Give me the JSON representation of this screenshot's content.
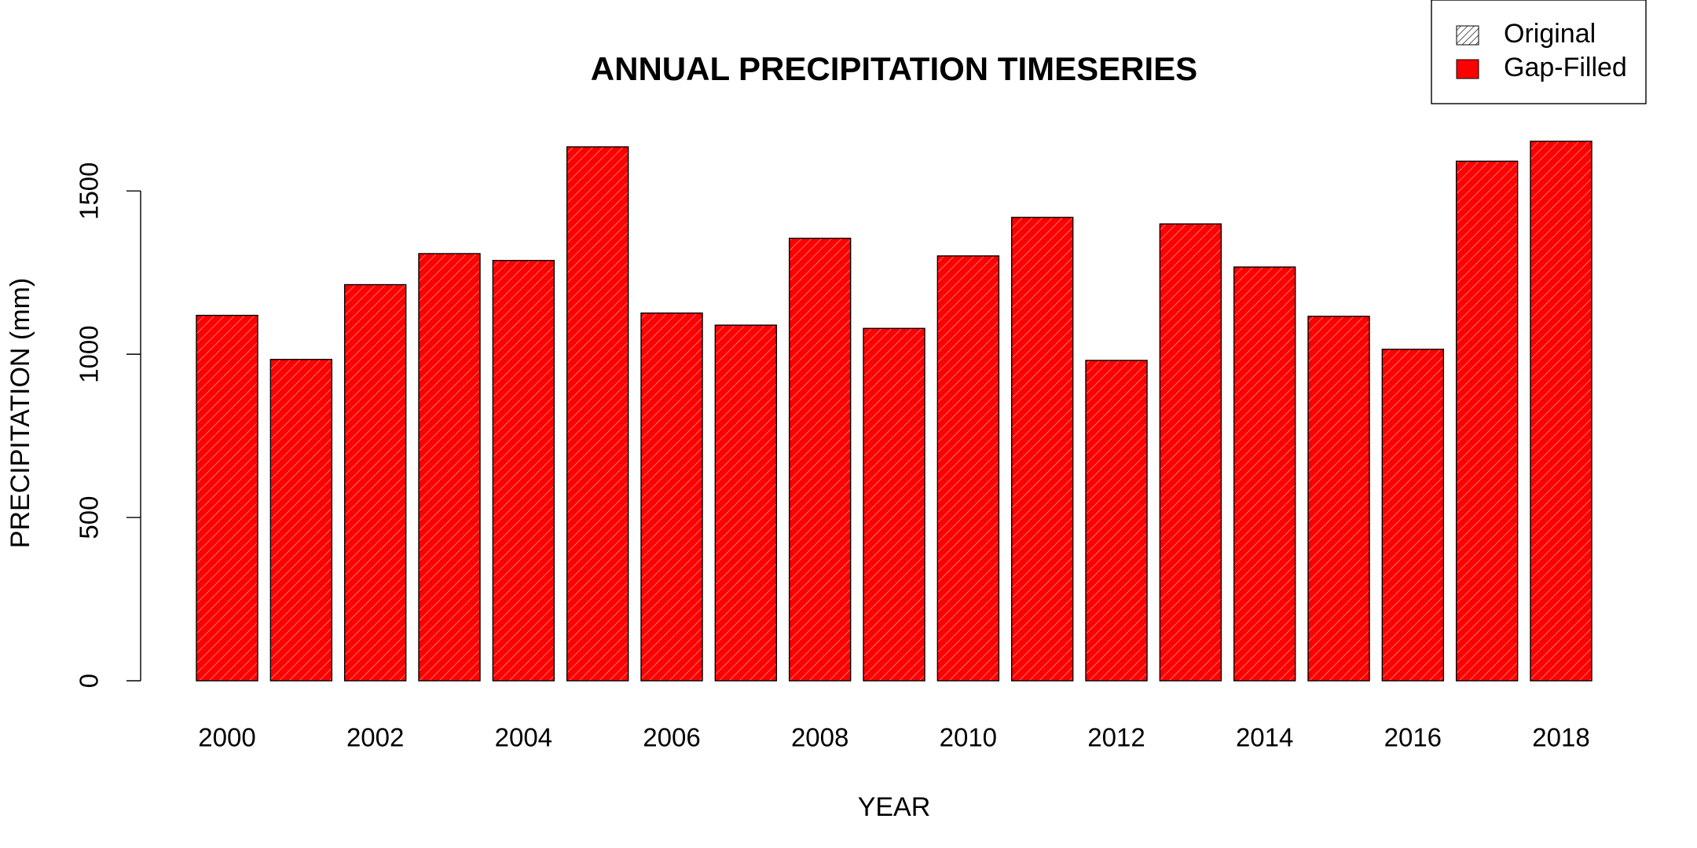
{
  "chart_data": {
    "type": "bar",
    "title": "ANNUAL PRECIPITATION TIMESERIES",
    "x_label": "YEAR",
    "y_label": "PRECIPITATION (mm)",
    "categories": [
      "2000",
      null,
      "2002",
      null,
      "2004",
      null,
      "2006",
      null,
      "2008",
      null,
      "2010",
      null,
      "2012",
      null,
      "2014",
      null,
      "2016",
      null,
      "2018"
    ],
    "values": [
      1119,
      984,
      1213,
      1308,
      1287,
      1635,
      1126,
      1089,
      1355,
      1079,
      1301,
      1419,
      981,
      1399,
      1267,
      1116,
      1015,
      1591,
      1652
    ],
    "color": "#ff0000",
    "hatch": true,
    "ylim": [
      0,
      1700
    ],
    "yticks": [
      0,
      500,
      1000,
      1500
    ],
    "grid": false,
    "legend": [
      "Original",
      "Gap-Filled"
    ],
    "legend_position": "top-right"
  }
}
